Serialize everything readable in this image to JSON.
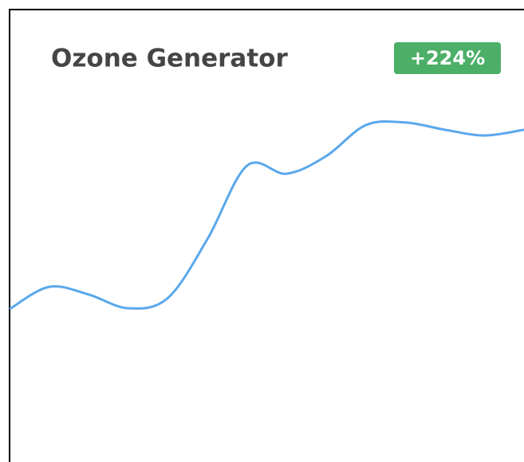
{
  "chart_data": {
    "type": "line",
    "title": "Ozone Generator",
    "badge": "+224%",
    "values": [
      40,
      45.8,
      43.8,
      40.2,
      42.9,
      58.3,
      77.5,
      75.4,
      80,
      88.1,
      88.8,
      86.9,
      85.4,
      86.9
    ],
    "color": "#5aa8eb",
    "badge_color": "#4caf68",
    "ylim": [
      0,
      100
    ]
  }
}
